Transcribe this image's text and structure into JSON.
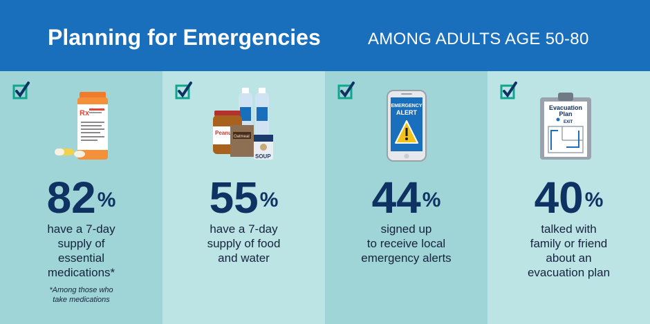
{
  "header": {
    "title": "Planning for Emergencies",
    "subtitle": "AMONG ADULTS AGE 50-80",
    "background": "#1a6fbd"
  },
  "colors": {
    "panel_dark": "#9fd5d6",
    "panel_light": "#bde4e5",
    "stat": "#0e3363",
    "check_green": "#10a58f",
    "check_navy": "#0e3363"
  },
  "panels": [
    {
      "icon": "medication-bottle-icon",
      "percent": "82",
      "percent_sign": "%",
      "desc_lines": [
        "have a 7-day",
        "supply of",
        "essential",
        "medications*"
      ],
      "footnote_lines": [
        "*Among those who",
        "take medications"
      ],
      "label_rx": "Rx"
    },
    {
      "icon": "food-and-water-icon",
      "percent": "55",
      "percent_sign": "%",
      "desc_lines": [
        "have a 7-day",
        "supply of food",
        "and water"
      ],
      "label_peanut": "Peanut Butter",
      "label_oatmeal": "Oatmeal",
      "label_soup": "SOUP"
    },
    {
      "icon": "emergency-alert-phone-icon",
      "percent": "44",
      "percent_sign": "%",
      "desc_lines": [
        "signed up",
        "to receive local",
        "emergency alerts"
      ],
      "label_alert_1": "EMERGENCY",
      "label_alert_2": "ALERT"
    },
    {
      "icon": "evacuation-plan-clipboard-icon",
      "percent": "40",
      "percent_sign": "%",
      "desc_lines": [
        "talked with",
        "family or friend",
        "about an",
        "evacuation plan"
      ],
      "label_plan_1": "Evacuation",
      "label_plan_2": "Plan",
      "label_exit": "EXIT"
    }
  ]
}
